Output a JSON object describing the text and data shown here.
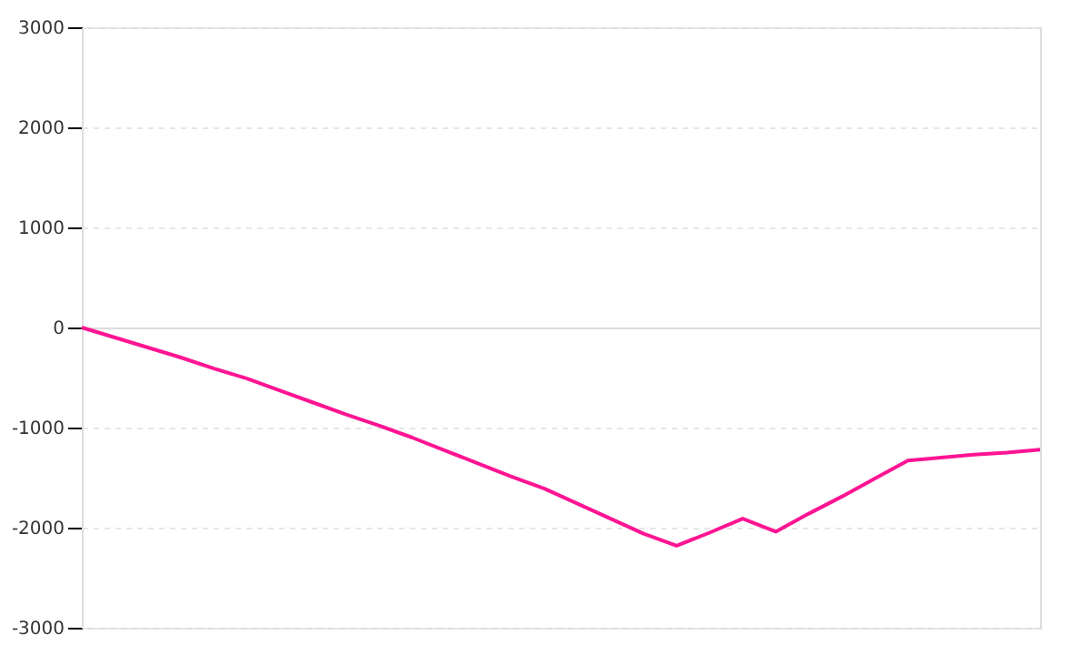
{
  "chart_data": {
    "type": "line",
    "categories": [
      null,
      null,
      null,
      null,
      null,
      null,
      null,
      null,
      null,
      null,
      null,
      null,
      null,
      null,
      null,
      null,
      null,
      null,
      null,
      null,
      null,
      null,
      null,
      null,
      null,
      null,
      null,
      null,
      null,
      null
    ],
    "series": [
      {
        "color": "#ff1493",
        "values": [
          0,
          -100,
          -200,
          -300,
          -410,
          -510,
          -630,
          -750,
          -870,
          -980,
          -1100,
          -1230,
          -1360,
          -1490,
          -1610,
          -1760,
          -1910,
          -2060,
          -2180,
          -2050,
          -1910,
          -2040,
          -1860,
          -1690,
          -1510,
          -1330,
          -1300,
          -1270,
          -1250,
          -1220
        ]
      }
    ],
    "ylim": [
      -3000,
      3000
    ],
    "yticks": [
      -3000,
      -2000,
      -1000,
      0,
      1000,
      2000,
      3000
    ],
    "tick_labels": "y",
    "grid": "y",
    "marker": "none",
    "line_style": "solid"
  }
}
